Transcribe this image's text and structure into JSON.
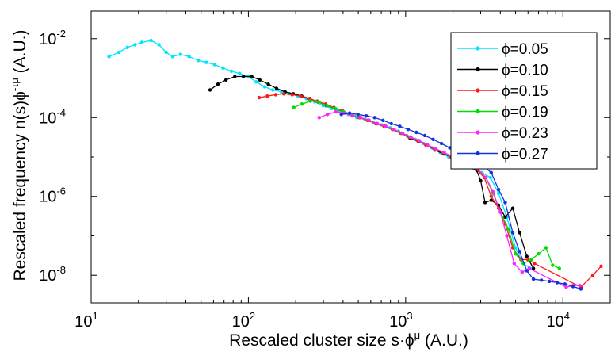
{
  "chart_data": {
    "type": "line",
    "title": "",
    "xlabel": "Rescaled cluster size s·ϕ",
    "xlabel_sup": "μ",
    "xlabel_suffix": " (A.U.)",
    "ylabel": "Rescaled frequency n(s)ϕ",
    "ylabel_sup": "-τμ",
    "ylabel_suffix": " (A.U.)",
    "x_scale": "log",
    "y_scale": "log",
    "xlim": [
      10,
      20000
    ],
    "ylim": [
      2e-09,
      0.05
    ],
    "x_ticks": [
      {
        "value": 10,
        "base": "10",
        "exp": "1"
      },
      {
        "value": 100,
        "base": "10",
        "exp": "2"
      },
      {
        "value": 1000,
        "base": "10",
        "exp": "3"
      },
      {
        "value": 10000,
        "base": "10",
        "exp": "4"
      }
    ],
    "y_ticks": [
      {
        "value": 0.01,
        "base": "10",
        "exp": "-2"
      },
      {
        "value": 0.0001,
        "base": "10",
        "exp": "-4"
      },
      {
        "value": 1e-06,
        "base": "10",
        "exp": "-6"
      },
      {
        "value": 1e-08,
        "base": "10",
        "exp": "-8"
      }
    ],
    "grid": false,
    "legend_position": "top-right",
    "series": [
      {
        "name": "ϕ=0.05",
        "color": "#00e5ff",
        "points": [
          [
            13,
            0.0035
          ],
          [
            15,
            0.0045
          ],
          [
            17,
            0.006
          ],
          [
            19,
            0.007
          ],
          [
            21,
            0.008
          ],
          [
            24,
            0.009
          ],
          [
            27,
            0.007
          ],
          [
            30,
            0.0045
          ],
          [
            33,
            0.0035
          ],
          [
            37,
            0.004
          ],
          [
            42,
            0.0035
          ],
          [
            48,
            0.0028
          ],
          [
            54,
            0.0025
          ],
          [
            61,
            0.0022
          ],
          [
            69,
            0.0018
          ],
          [
            78,
            0.0015
          ],
          [
            88,
            0.0013
          ],
          [
            100,
            0.0011
          ],
          [
            112,
            0.0008
          ],
          [
            127,
            0.0006
          ],
          [
            143,
            0.0005
          ],
          [
            162,
            0.00045
          ],
          [
            183,
            0.0004
          ],
          [
            207,
            0.00035
          ],
          [
            234,
            0.0003
          ],
          [
            264,
            0.00025
          ],
          [
            299,
            0.0002
          ],
          [
            338,
            0.00017
          ],
          [
            382,
            0.00014
          ],
          [
            432,
            0.00012
          ],
          [
            488,
            0.0001
          ],
          [
            551,
            9e-05
          ],
          [
            623,
            7.5e-05
          ],
          [
            704,
            6.5e-05
          ],
          [
            796,
            5.5e-05
          ],
          [
            900,
            4.5e-05
          ],
          [
            1017,
            3.5e-05
          ],
          [
            1150,
            2.8e-05
          ],
          [
            1300,
            2.2e-05
          ],
          [
            1469,
            1.7e-05
          ],
          [
            1660,
            1.3e-05
          ],
          [
            1877,
            1e-05
          ],
          [
            2121,
            8e-06
          ],
          [
            2397,
            6.5e-06
          ],
          [
            2710,
            5e-06
          ],
          [
            3062,
            4e-06
          ],
          [
            3461,
            3e-06
          ],
          [
            3900,
            1.2e-06
          ],
          [
            4400,
            3e-07
          ],
          [
            5000,
            5e-08
          ],
          [
            5600,
            2e-08
          ],
          [
            6200,
            1.5e-08
          ]
        ]
      },
      {
        "name": "ϕ=0.10",
        "color": "#000000",
        "points": [
          [
            57,
            0.0005
          ],
          [
            64,
            0.0007
          ],
          [
            72,
            0.0009
          ],
          [
            82,
            0.0011
          ],
          [
            93,
            0.0011
          ],
          [
            105,
            0.0011
          ],
          [
            118,
            0.0009
          ],
          [
            134,
            0.0007
          ],
          [
            151,
            0.00055
          ],
          [
            171,
            0.00045
          ],
          [
            193,
            0.0004
          ],
          [
            218,
            0.00035
          ],
          [
            246,
            0.0003
          ],
          [
            278,
            0.00025
          ],
          [
            314,
            0.0002
          ],
          [
            355,
            0.00017
          ],
          [
            401,
            0.00014
          ],
          [
            453,
            0.00012
          ],
          [
            512,
            0.0001
          ],
          [
            579,
            8.5e-05
          ],
          [
            654,
            7e-05
          ],
          [
            739,
            6e-05
          ],
          [
            835,
            5e-05
          ],
          [
            944,
            4e-05
          ],
          [
            1067,
            3e-05
          ],
          [
            1205,
            2.5e-05
          ],
          [
            1362,
            2e-05
          ],
          [
            1539,
            1.5e-05
          ],
          [
            1740,
            1.2e-05
          ],
          [
            1966,
            1e-05
          ],
          [
            2222,
            8e-06
          ],
          [
            2511,
            6e-06
          ],
          [
            2837,
            4.5e-06
          ],
          [
            3000,
            2.5e-06
          ],
          [
            3200,
            7e-07
          ],
          [
            3500,
            8e-07
          ],
          [
            3900,
            6e-07
          ],
          [
            4300,
            3e-07
          ],
          [
            4800,
            5e-07
          ],
          [
            5300,
            1.2e-07
          ],
          [
            5900,
            3e-08
          ],
          [
            6500,
            1.5e-08
          ]
        ]
      },
      {
        "name": "ϕ=0.15",
        "color": "#ff1a1a",
        "points": [
          [
            117,
            0.00032
          ],
          [
            132,
            0.00035
          ],
          [
            149,
            0.00038
          ],
          [
            168,
            0.0004
          ],
          [
            190,
            0.00038
          ],
          [
            215,
            0.00035
          ],
          [
            243,
            0.0003
          ],
          [
            274,
            0.00026
          ],
          [
            310,
            0.00022
          ],
          [
            350,
            0.00018
          ],
          [
            396,
            0.00015
          ],
          [
            447,
            0.00012
          ],
          [
            505,
            0.0001
          ],
          [
            571,
            8.5e-05
          ],
          [
            645,
            7e-05
          ],
          [
            729,
            6e-05
          ],
          [
            824,
            5e-05
          ],
          [
            931,
            4e-05
          ],
          [
            1052,
            3.2e-05
          ],
          [
            1189,
            2.6e-05
          ],
          [
            1344,
            2e-05
          ],
          [
            1519,
            1.6e-05
          ],
          [
            1716,
            1.3e-05
          ],
          [
            1940,
            1e-05
          ],
          [
            2192,
            8e-06
          ],
          [
            2477,
            6.5e-06
          ],
          [
            2800,
            5e-06
          ],
          [
            3164,
            3e-06
          ],
          [
            3500,
            1e-06
          ],
          [
            3900,
            5e-07
          ],
          [
            4300,
            2e-07
          ],
          [
            4800,
            5e-08
          ],
          [
            5400,
            2.5e-08
          ],
          [
            6000,
            2.5e-08
          ],
          [
            6600,
            2e-08
          ],
          [
            13000,
            5e-09
          ],
          [
            15500,
            1e-08
          ],
          [
            17500,
            1.7e-08
          ]
        ]
      },
      {
        "name": "ϕ=0.19",
        "color": "#00dd00",
        "points": [
          [
            194,
            0.00018
          ],
          [
            219,
            0.00022
          ],
          [
            248,
            0.00026
          ],
          [
            280,
            0.00025
          ],
          [
            316,
            0.0002
          ],
          [
            357,
            0.00017
          ],
          [
            404,
            0.00014
          ],
          [
            456,
            0.00012
          ],
          [
            516,
            0.0001
          ],
          [
            583,
            8.5e-05
          ],
          [
            659,
            7e-05
          ],
          [
            744,
            6e-05
          ],
          [
            841,
            5e-05
          ],
          [
            951,
            4e-05
          ],
          [
            1074,
            3.2e-05
          ],
          [
            1214,
            2.6e-05
          ],
          [
            1372,
            2e-05
          ],
          [
            1551,
            1.6e-05
          ],
          [
            1752,
            1.3e-05
          ],
          [
            1980,
            1e-05
          ],
          [
            2238,
            8e-06
          ],
          [
            2529,
            6.5e-06
          ],
          [
            2858,
            5e-06
          ],
          [
            3229,
            3e-06
          ],
          [
            3600,
            1.2e-06
          ],
          [
            4000,
            4e-07
          ],
          [
            4500,
            1.5e-07
          ],
          [
            5000,
            3.5e-08
          ],
          [
            5600,
            2e-08
          ],
          [
            6300,
            2.5e-08
          ],
          [
            7000,
            3.5e-08
          ],
          [
            7800,
            5e-08
          ],
          [
            8600,
            1.8e-08
          ],
          [
            9500,
            1.5e-08
          ]
        ]
      },
      {
        "name": "ϕ=0.23",
        "color": "#ff22ff",
        "points": [
          [
            282,
            0.0001
          ],
          [
            318,
            0.00012
          ],
          [
            360,
            0.00014
          ],
          [
            406,
            0.00013
          ],
          [
            459,
            0.00011
          ],
          [
            519,
            0.0001
          ],
          [
            586,
            8.5e-05
          ],
          [
            662,
            7e-05
          ],
          [
            748,
            6e-05
          ],
          [
            846,
            5e-05
          ],
          [
            956,
            4e-05
          ],
          [
            1080,
            3.2e-05
          ],
          [
            1220,
            2.6e-05
          ],
          [
            1379,
            2e-05
          ],
          [
            1558,
            1.6e-05
          ],
          [
            1761,
            1.3e-05
          ],
          [
            1990,
            1e-05
          ],
          [
            2249,
            8e-06
          ],
          [
            2541,
            6.5e-06
          ],
          [
            2872,
            5e-06
          ],
          [
            3245,
            3e-06
          ],
          [
            3600,
            1.3e-06
          ],
          [
            4000,
            4e-07
          ],
          [
            4400,
            1e-07
          ],
          [
            4900,
            2e-08
          ],
          [
            5500,
            1.2e-08
          ],
          [
            6100,
            1.5e-08
          ],
          [
            10500,
            5e-09
          ],
          [
            11600,
            5.5e-09
          ],
          [
            12800,
            5.5e-09
          ]
        ]
      },
      {
        "name": "ϕ=0.27",
        "color": "#1133dd",
        "points": [
          [
            390,
            0.00012
          ],
          [
            440,
            0.00013
          ],
          [
            498,
            0.00012
          ],
          [
            562,
            0.00011
          ],
          [
            635,
            0.0001
          ],
          [
            718,
            8.5e-05
          ],
          [
            811,
            7e-05
          ],
          [
            917,
            6e-05
          ],
          [
            1036,
            5e-05
          ],
          [
            1171,
            4.2e-05
          ],
          [
            1323,
            3.5e-05
          ],
          [
            1495,
            2.8e-05
          ],
          [
            1689,
            2.2e-05
          ],
          [
            1908,
            1.7e-05
          ],
          [
            2157,
            1.3e-05
          ],
          [
            2437,
            1e-05
          ],
          [
            2754,
            8e-06
          ],
          [
            3112,
            6e-06
          ],
          [
            3500,
            4e-06
          ],
          [
            3900,
            1.5e-06
          ],
          [
            4300,
            7e-07
          ],
          [
            4800,
            1.2e-07
          ],
          [
            5300,
            4e-08
          ],
          [
            5900,
            1.3e-08
          ],
          [
            6500,
            8e-09
          ],
          [
            7300,
            7.5e-09
          ],
          [
            8200,
            7e-09
          ],
          [
            9200,
            6.5e-09
          ],
          [
            10300,
            6e-09
          ],
          [
            11600,
            5.2e-09
          ],
          [
            13000,
            4.5e-09
          ]
        ]
      }
    ]
  }
}
